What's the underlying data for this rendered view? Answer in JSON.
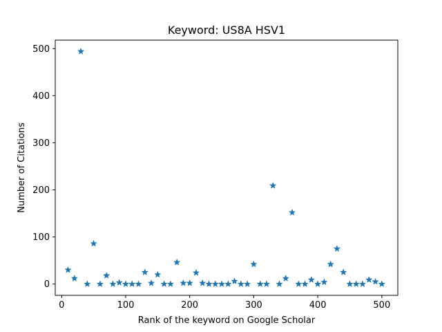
{
  "chart_data": {
    "type": "scatter",
    "title": "Keyword: US8A HSV1",
    "xlabel": "Rank of the keyword on Google Scholar",
    "ylabel": "Number of Citations",
    "xlim": [
      -10,
      525
    ],
    "ylim": [
      -24,
      518
    ],
    "xticks": [
      0,
      100,
      200,
      300,
      400,
      500
    ],
    "yticks": [
      0,
      100,
      200,
      300,
      400,
      500
    ],
    "grid": false,
    "marker": "star",
    "color": "#1f77b4",
    "points": [
      {
        "x": 10,
        "y": 30
      },
      {
        "x": 20,
        "y": 12
      },
      {
        "x": 30,
        "y": 494
      },
      {
        "x": 40,
        "y": 0
      },
      {
        "x": 50,
        "y": 86
      },
      {
        "x": 60,
        "y": 0
      },
      {
        "x": 70,
        "y": 18
      },
      {
        "x": 80,
        "y": 0
      },
      {
        "x": 90,
        "y": 3
      },
      {
        "x": 100,
        "y": 0
      },
      {
        "x": 110,
        "y": 0
      },
      {
        "x": 120,
        "y": 0
      },
      {
        "x": 130,
        "y": 25
      },
      {
        "x": 140,
        "y": 2
      },
      {
        "x": 150,
        "y": 20
      },
      {
        "x": 160,
        "y": 0
      },
      {
        "x": 170,
        "y": 0
      },
      {
        "x": 180,
        "y": 46
      },
      {
        "x": 190,
        "y": 2
      },
      {
        "x": 200,
        "y": 2
      },
      {
        "x": 210,
        "y": 24
      },
      {
        "x": 220,
        "y": 2
      },
      {
        "x": 230,
        "y": 0
      },
      {
        "x": 240,
        "y": 0
      },
      {
        "x": 250,
        "y": 0
      },
      {
        "x": 260,
        "y": 0
      },
      {
        "x": 270,
        "y": 6
      },
      {
        "x": 280,
        "y": 0
      },
      {
        "x": 290,
        "y": 0
      },
      {
        "x": 300,
        "y": 42
      },
      {
        "x": 310,
        "y": 0
      },
      {
        "x": 320,
        "y": 0
      },
      {
        "x": 330,
        "y": 209
      },
      {
        "x": 340,
        "y": 0
      },
      {
        "x": 350,
        "y": 12
      },
      {
        "x": 360,
        "y": 152
      },
      {
        "x": 370,
        "y": 0
      },
      {
        "x": 380,
        "y": 0
      },
      {
        "x": 390,
        "y": 9
      },
      {
        "x": 400,
        "y": 0
      },
      {
        "x": 410,
        "y": 4
      },
      {
        "x": 420,
        "y": 42
      },
      {
        "x": 430,
        "y": 75
      },
      {
        "x": 440,
        "y": 25
      },
      {
        "x": 450,
        "y": 0
      },
      {
        "x": 460,
        "y": 0
      },
      {
        "x": 470,
        "y": 0
      },
      {
        "x": 480,
        "y": 9
      },
      {
        "x": 490,
        "y": 5
      },
      {
        "x": 500,
        "y": 0
      }
    ]
  }
}
